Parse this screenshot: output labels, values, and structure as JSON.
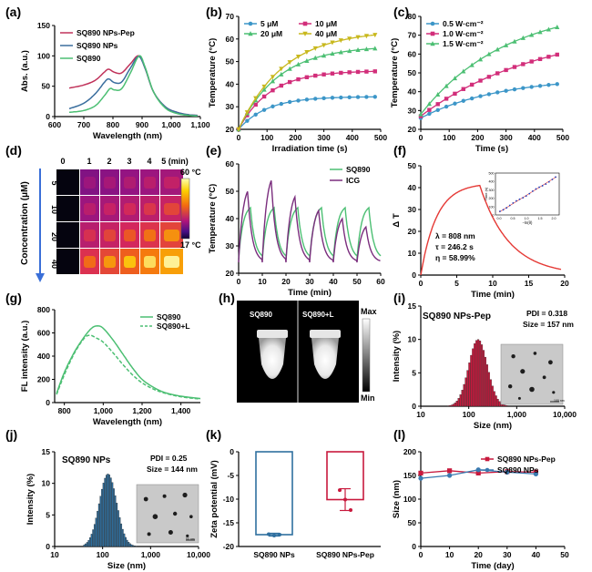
{
  "colors": {
    "pink": "#d22e5a",
    "blue": "#2f6f9f",
    "green": "#4cbf73",
    "olive": "#c8b81d",
    "purple": "#7a2d7d",
    "red": "#e53935",
    "crimson": "#c8193d",
    "steel": "#5a8fb8"
  },
  "panels": {
    "a": {
      "label": "(a)"
    },
    "b": {
      "label": "(b)"
    },
    "c": {
      "label": "(c)"
    },
    "d": {
      "label": "(d)",
      "cols": [
        "0",
        "1",
        "2",
        "3",
        "4",
        "5 (min)"
      ],
      "rows": [
        "5",
        "10",
        "20",
        "40"
      ],
      "ylabel": "Concentration (μM)",
      "scale_max": "60 °C",
      "scale_min": "17 °C"
    },
    "e": {
      "label": "(e)"
    },
    "f": {
      "label": "(f)",
      "anno": [
        "λ = 808 nm",
        "τ = 246.2 s",
        "η = 58.99%"
      ],
      "inset_ylabel": "Time (s)",
      "inset_xlabel": "−ln(θ)",
      "inset_yticks": [
        "500",
        "400",
        "300",
        "200",
        "100",
        "0"
      ],
      "inset_xticks": [
        "0.0",
        "0.5",
        "1.0",
        "1.5",
        "2.0"
      ]
    },
    "g": {
      "label": "(g)"
    },
    "h": {
      "label": "(h)",
      "left": "SQ890",
      "right": "SQ890+L",
      "max": "Max",
      "min": "Min"
    },
    "i": {
      "label": "(i)",
      "title": "SQ890 NPs-Pep",
      "pdi": "PDI = 0.318",
      "size": "Size = 157 nm",
      "scale": "100 nm"
    },
    "j": {
      "label": "(j)",
      "title": "SQ890 NPs",
      "pdi": "PDI = 0.25",
      "size": "Size = 144 nm",
      "scale": "50 nm"
    },
    "k": {
      "label": "(k)"
    },
    "l": {
      "label": "(l)"
    }
  },
  "chart_data": [
    {
      "id": "a",
      "type": "line",
      "xlabel": "Wavelength (nm)",
      "ylabel": "Abs. (a.u.)",
      "xlim": [
        600,
        1100
      ],
      "ylim": [
        0,
        150
      ],
      "xticks": [
        "600",
        "700",
        "800",
        "900",
        "1,000",
        "1,100"
      ],
      "yticks": [
        "0",
        "50",
        "100",
        "150"
      ],
      "legend": "top-left",
      "series": [
        {
          "name": "SQ890 NPs-Pep",
          "color": "#c0325a",
          "points": [
            [
              650,
              47
            ],
            [
              700,
              52
            ],
            [
              740,
              60
            ],
            [
              770,
              73
            ],
            [
              785,
              78
            ],
            [
              805,
              73
            ],
            [
              830,
              72
            ],
            [
              860,
              87
            ],
            [
              888,
              100
            ],
            [
              910,
              80
            ],
            [
              940,
              40
            ],
            [
              980,
              16
            ],
            [
              1020,
              7
            ],
            [
              1060,
              3
            ],
            [
              1090,
              2
            ]
          ]
        },
        {
          "name": "SQ890 NPs",
          "color": "#3a6e9e",
          "points": [
            [
              650,
              13
            ],
            [
              700,
              22
            ],
            [
              740,
              38
            ],
            [
              770,
              56
            ],
            [
              785,
              62
            ],
            [
              805,
              56
            ],
            [
              830,
              57
            ],
            [
              860,
              80
            ],
            [
              888,
              99
            ],
            [
              910,
              80
            ],
            [
              940,
              40
            ],
            [
              980,
              16
            ],
            [
              1020,
              7
            ],
            [
              1060,
              3
            ],
            [
              1090,
              2
            ]
          ]
        },
        {
          "name": "SQ890",
          "color": "#4cbf73",
          "points": [
            [
              650,
              7
            ],
            [
              700,
              10
            ],
            [
              740,
              18
            ],
            [
              770,
              34
            ],
            [
              790,
              46
            ],
            [
              805,
              44
            ],
            [
              830,
              46
            ],
            [
              860,
              72
            ],
            [
              890,
              100
            ],
            [
              910,
              82
            ],
            [
              940,
              40
            ],
            [
              980,
              14
            ],
            [
              1020,
              5
            ],
            [
              1060,
              2
            ],
            [
              1090,
              1
            ]
          ]
        }
      ]
    },
    {
      "id": "b",
      "type": "line",
      "xlabel": "Irradiation time (s)",
      "ylabel": "Temperature (°C)",
      "xlim": [
        0,
        500
      ],
      "ylim": [
        20,
        70
      ],
      "xticks": [
        "0",
        "100",
        "200",
        "300",
        "400",
        "500"
      ],
      "yticks": [
        "20",
        "30",
        "40",
        "50",
        "60",
        "70"
      ],
      "legend": "top-left",
      "k": 4.5,
      "series": [
        {
          "name": "5 μM",
          "color": "#3c96c8",
          "marker": "circle",
          "T0": 20,
          "dT": 14.5,
          "tau": 100
        },
        {
          "name": "10 μM",
          "color": "#d22e7a",
          "marker": "square",
          "T0": 20,
          "dT": 26,
          "tau": 110
        },
        {
          "name": "20 μM",
          "color": "#4cbf73",
          "marker": "triangle",
          "T0": 20,
          "dT": 37,
          "tau": 140
        },
        {
          "name": "40 μM",
          "color": "#c8b81d",
          "marker": "triangle-down",
          "T0": 20,
          "dT": 44,
          "tau": 160
        }
      ]
    },
    {
      "id": "c",
      "type": "line",
      "xlabel": "Time (s)",
      "ylabel": "Temperature (°C)",
      "xlim": [
        0,
        500
      ],
      "ylim": [
        20,
        80
      ],
      "xticks": [
        "0",
        "100",
        "200",
        "300",
        "400",
        "500"
      ],
      "yticks": [
        "20",
        "30",
        "40",
        "50",
        "60",
        "70",
        "80"
      ],
      "legend": "top-left",
      "series": [
        {
          "name": "0.5 W·cm⁻²",
          "color": "#3c96c8",
          "marker": "circle",
          "T0": 26,
          "dT": 22,
          "tau": 280
        },
        {
          "name": "1.0 W·cm⁻²",
          "color": "#d22e7a",
          "marker": "square",
          "T0": 27,
          "dT": 48,
          "tau": 420
        },
        {
          "name": "1.5 W·cm⁻²",
          "color": "#4cbf73",
          "marker": "triangle",
          "T0": 28,
          "dT": 58,
          "tau": 300
        }
      ]
    },
    {
      "id": "e",
      "type": "line",
      "xlabel": "Time (min)",
      "ylabel": "Temperature (°C)",
      "xlim": [
        0,
        60
      ],
      "ylim": [
        20,
        60
      ],
      "xticks": [
        "0",
        "10",
        "20",
        "30",
        "40",
        "50",
        "60"
      ],
      "yticks": [
        "20",
        "30",
        "40",
        "50",
        "60"
      ],
      "legend": "top-right",
      "series": [
        {
          "name": "SQ890",
          "color": "#4cbf73",
          "base": 25,
          "cycles": [
            [
              0,
              44
            ],
            [
              10,
              44
            ],
            [
              20,
              44
            ],
            [
              30,
              44
            ],
            [
              40,
              44
            ],
            [
              50,
              44
            ]
          ],
          "heat": 5,
          "cool": 5
        },
        {
          "name": "ICG",
          "color": "#7a2d7d",
          "base": 24,
          "cycles": [
            [
              0,
              50
            ],
            [
              10,
              54
            ],
            [
              20,
              48
            ],
            [
              30,
              43
            ],
            [
              40,
              40
            ],
            [
              50,
              37
            ]
          ],
          "heat": 3.8,
          "cool": 6.2
        }
      ]
    },
    {
      "id": "f",
      "type": "line",
      "xlabel": "Time (min)",
      "ylabel": "Δ T",
      "xlim": [
        0,
        20
      ],
      "ylim": [
        0,
        50
      ],
      "xticks": [
        "0",
        "5",
        "10",
        "15",
        "20"
      ],
      "yticks": [
        "0",
        "10",
        "20",
        "30",
        "40",
        "50"
      ],
      "series": [
        {
          "name": "",
          "color": "#e53935",
          "heat_end": 8.2,
          "Tmax": 41,
          "tau_min": 4.1
        }
      ]
    },
    {
      "id": "g",
      "type": "line",
      "xlabel": "Wavelength (nm)",
      "ylabel": "FL intensity (a.u.)",
      "xlim": [
        750,
        1500
      ],
      "ylim": [
        0,
        800
      ],
      "xticks": [
        "800",
        "1,000",
        "1,200",
        "1,400"
      ],
      "yticks": [
        "0",
        "200",
        "400",
        "600",
        "800"
      ],
      "legend": "top-right",
      "series": [
        {
          "name": "SQ890",
          "color": "#4cbf73",
          "dash": false,
          "points": [
            [
              760,
              80
            ],
            [
              800,
              260
            ],
            [
              850,
              430
            ],
            [
              900,
              560
            ],
            [
              940,
              640
            ],
            [
              970,
              660
            ],
            [
              1000,
              640
            ],
            [
              1050,
              540
            ],
            [
              1100,
              420
            ],
            [
              1150,
              300
            ],
            [
              1200,
              200
            ],
            [
              1260,
              130
            ],
            [
              1320,
              85
            ],
            [
              1400,
              55
            ],
            [
              1500,
              35
            ]
          ]
        },
        {
          "name": "SQ890+L",
          "color": "#4cbf73",
          "dash": true,
          "points": [
            [
              760,
              70
            ],
            [
              800,
              240
            ],
            [
              850,
              420
            ],
            [
              900,
              550
            ],
            [
              930,
              580
            ],
            [
              960,
              560
            ],
            [
              1000,
              520
            ],
            [
              1050,
              430
            ],
            [
              1100,
              330
            ],
            [
              1150,
              240
            ],
            [
              1200,
              170
            ],
            [
              1260,
              115
            ],
            [
              1320,
              80
            ],
            [
              1400,
              50
            ],
            [
              1500,
              30
            ]
          ]
        }
      ]
    },
    {
      "id": "i",
      "type": "bar",
      "xlabel": "Size (nm)",
      "ylabel": "Intensity (%)",
      "xscale": "log",
      "xlim": [
        10,
        10000
      ],
      "ylim": [
        0,
        15
      ],
      "xticks": [
        "10",
        "100",
        "1,000",
        "10,000"
      ],
      "yticks": [
        "0",
        "5",
        "10",
        "15"
      ],
      "color": "#c8193d",
      "center": 157,
      "sigma": 0.43,
      "peak": 10,
      "bins": [
        30,
        650
      ]
    },
    {
      "id": "j",
      "type": "bar",
      "xlabel": "Size (nm)",
      "ylabel": "Intensity (%)",
      "xscale": "log",
      "xlim": [
        10,
        10000
      ],
      "ylim": [
        0,
        15
      ],
      "xticks": [
        "10",
        "100",
        "1,000",
        "10,000"
      ],
      "yticks": [
        "0",
        "5",
        "10",
        "15"
      ],
      "color": "#2f6f9f",
      "center": 130,
      "sigma": 0.4,
      "peak": 11.5,
      "bins": [
        40,
        520
      ]
    },
    {
      "id": "k",
      "type": "bar",
      "ylabel": "Zeta potential (mV)",
      "categories": [
        "SQ890 NPs",
        "SQ890 NPs-Pep"
      ],
      "ylim": [
        -20,
        0
      ],
      "yticks": [
        "0",
        "-5",
        "-10",
        "-15",
        "-20"
      ],
      "values": [
        -17.5,
        -10.1
      ],
      "err": [
        0.3,
        2.3
      ],
      "colors": [
        "#2f6f9f",
        "#c8193d"
      ],
      "points": [
        [
          -17.4,
          -17.7,
          -17.5
        ],
        [
          -8.1,
          -10.1,
          -12.3
        ]
      ]
    },
    {
      "id": "l",
      "type": "line",
      "xlabel": "Time (day)",
      "ylabel": "Size (nm)",
      "xlim": [
        0,
        50
      ],
      "ylim": [
        0,
        200
      ],
      "xticks": [
        "0",
        "10",
        "20",
        "30",
        "40",
        "50"
      ],
      "yticks": [
        "0",
        "50",
        "100",
        "150",
        "200"
      ],
      "legend": "top-right",
      "series": [
        {
          "name": "SQ890 NPs-Pep",
          "color": "#c8193d",
          "marker": "square",
          "x": [
            0,
            10,
            20,
            30,
            40
          ],
          "y": [
            155,
            160,
            155,
            158,
            157
          ]
        },
        {
          "name": "SQ890 NPs",
          "color": "#3a7ab0",
          "marker": "circle",
          "x": [
            0,
            10,
            20,
            30,
            40
          ],
          "y": [
            144,
            150,
            162,
            157,
            153
          ]
        }
      ]
    }
  ]
}
